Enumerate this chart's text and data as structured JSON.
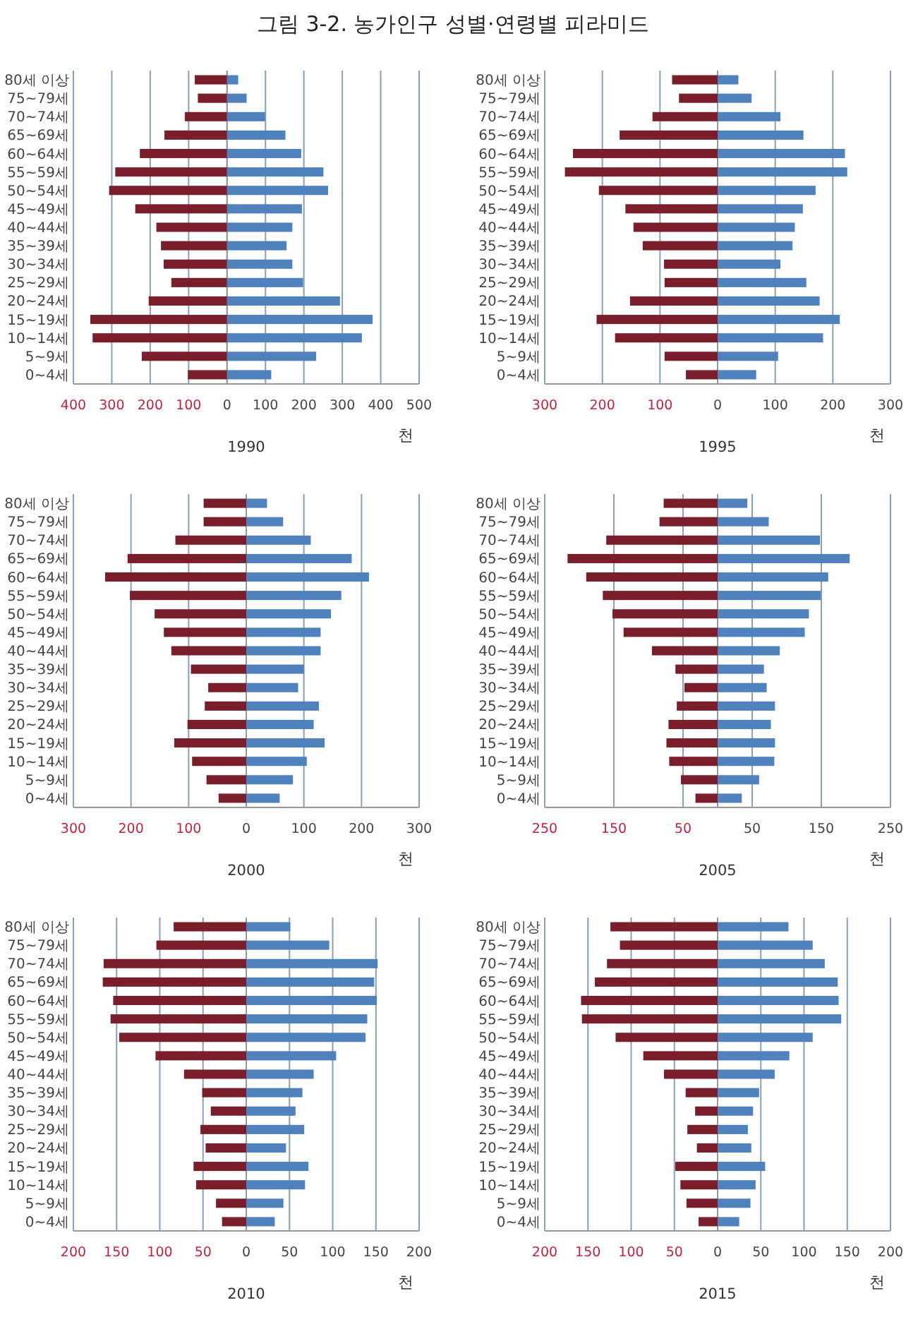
{
  "chart_data": [
    {
      "type": "bar",
      "orientation": "horizontal",
      "stacked": true,
      "title": "그림 3-2.  농가인구 성별·연령별 피라미드",
      "xlabel": "1990",
      "annotations": [
        "천"
      ],
      "grid": "x",
      "categories": [
        "80세 이상",
        "75~79세",
        "70~74세",
        "65~69세",
        "60~64세",
        "55~59세",
        "50~54세",
        "45~49세",
        "40~44세",
        "35~39세",
        "30~34세",
        "25~29세",
        "20~24세",
        "15~19세",
        "10~14세",
        "5~9세",
        "0~4세"
      ],
      "xlim": [
        -400,
        500
      ],
      "xticks": [
        {
          "value": -400,
          "label": "400"
        },
        {
          "value": -300,
          "label": "300"
        },
        {
          "value": -200,
          "label": "200"
        },
        {
          "value": -100,
          "label": "100"
        },
        0,
        100,
        200,
        300,
        400,
        500
      ],
      "series": [
        {
          "color": "#7b1e2b",
          "values": [
            -84,
            -76,
            -110,
            -163,
            -227,
            -291,
            -307,
            -239,
            -184,
            -172,
            -165,
            -145,
            -204,
            -356,
            -350,
            -222,
            -102
          ]
        },
        {
          "color": "#4f81bd",
          "values": [
            29,
            51,
            99,
            152,
            193,
            251,
            263,
            195,
            170,
            155,
            170,
            198,
            294,
            379,
            351,
            232,
            115
          ]
        }
      ]
    },
    {
      "type": "bar",
      "orientation": "horizontal",
      "stacked": true,
      "xlabel": "1995",
      "annotations": [
        "천"
      ],
      "grid": "x",
      "categories": [
        "80세 이상",
        "75~79세",
        "70~74세",
        "65~69세",
        "60~64세",
        "55~59세",
        "50~54세",
        "45~49세",
        "40~44세",
        "35~39세",
        "30~34세",
        "25~29세",
        "20~24세",
        "15~19세",
        "10~14세",
        "5~9세",
        "0~4세"
      ],
      "xlim": [
        -300,
        300
      ],
      "xticks": [
        {
          "value": -300,
          "label": "300"
        },
        {
          "value": -200,
          "label": "200"
        },
        {
          "value": -100,
          "label": "100"
        },
        0,
        100,
        200,
        300
      ],
      "series": [
        {
          "color": "#7b1e2b",
          "values": [
            -79,
            -67,
            -113,
            -170,
            -251,
            -265,
            -206,
            -160,
            -146,
            -130,
            -93,
            -92,
            -152,
            -210,
            -178,
            -92,
            -55
          ]
        },
        {
          "color": "#4f81bd",
          "values": [
            36,
            59,
            109,
            149,
            221,
            225,
            170,
            148,
            134,
            130,
            109,
            154,
            177,
            212,
            183,
            105,
            67
          ]
        }
      ]
    },
    {
      "type": "bar",
      "orientation": "horizontal",
      "stacked": true,
      "xlabel": "2000",
      "annotations": [
        "천"
      ],
      "grid": "x",
      "categories": [
        "80세 이상",
        "75~79세",
        "70~74세",
        "65~69세",
        "60~64세",
        "55~59세",
        "50~54세",
        "45~49세",
        "40~44세",
        "35~39세",
        "30~34세",
        "25~29세",
        "20~24세",
        "15~19세",
        "10~14세",
        "5~9세",
        "0~4세"
      ],
      "xlim": [
        -300,
        300
      ],
      "xticks": [
        {
          "value": -300,
          "label": "300"
        },
        {
          "value": -200,
          "label": "200"
        },
        {
          "value": -100,
          "label": "100"
        },
        0,
        100,
        200,
        300
      ],
      "series": [
        {
          "color": "#7b1e2b",
          "values": [
            -74,
            -74,
            -123,
            -206,
            -245,
            -202,
            -159,
            -143,
            -130,
            -96,
            -66,
            -72,
            -102,
            -125,
            -94,
            -69,
            -48
          ]
        },
        {
          "color": "#4f81bd",
          "values": [
            36,
            64,
            112,
            183,
            213,
            165,
            147,
            129,
            129,
            100,
            90,
            126,
            117,
            136,
            105,
            81,
            58
          ]
        }
      ]
    },
    {
      "type": "bar",
      "orientation": "horizontal",
      "stacked": true,
      "xlabel": "2005",
      "annotations": [
        "천"
      ],
      "grid": "x",
      "categories": [
        "80세 이상",
        "75~79세",
        "70~74세",
        "65~69세",
        "60~64세",
        "55~59세",
        "50~54세",
        "45~49세",
        "40~44세",
        "35~39세",
        "30~34세",
        "25~29세",
        "20~24세",
        "15~19세",
        "10~14세",
        "5~9세",
        "0~4세"
      ],
      "xlim": [
        -250,
        250
      ],
      "xticks": [
        {
          "value": -250,
          "label": "250"
        },
        {
          "value": -150,
          "label": "150"
        },
        {
          "value": -50,
          "label": "50"
        },
        {
          "value": 0,
          "label": null
        },
        50,
        150,
        250
      ],
      "series": [
        {
          "color": "#7b1e2b",
          "values": [
            -78,
            -84,
            -161,
            -217,
            -190,
            -166,
            -152,
            -136,
            -95,
            -61,
            -48,
            -59,
            -71,
            -74,
            -70,
            -53,
            -32
          ]
        },
        {
          "color": "#4f81bd",
          "values": [
            43,
            74,
            148,
            191,
            160,
            149,
            132,
            126,
            90,
            67,
            71,
            83,
            77,
            83,
            82,
            60,
            35
          ]
        }
      ]
    },
    {
      "type": "bar",
      "orientation": "horizontal",
      "stacked": true,
      "xlabel": "2010",
      "annotations": [
        "천"
      ],
      "grid": "x",
      "categories": [
        "80세 이상",
        "75~79세",
        "70~74세",
        "65~69세",
        "60~64세",
        "55~59세",
        "50~54세",
        "45~49세",
        "40~44세",
        "35~39세",
        "30~34세",
        "25~29세",
        "20~24세",
        "15~19세",
        "10~14세",
        "5~9세",
        "0~4세"
      ],
      "xlim": [
        -200,
        200
      ],
      "xticks": [
        {
          "value": -200,
          "label": "200"
        },
        {
          "value": -150,
          "label": "150"
        },
        {
          "value": -100,
          "label": "100"
        },
        {
          "value": -50,
          "label": "50"
        },
        0,
        50,
        100,
        150,
        200
      ],
      "series": [
        {
          "color": "#7b1e2b",
          "values": [
            -84,
            -104,
            -165,
            -166,
            -154,
            -157,
            -147,
            -105,
            -72,
            -51,
            -41,
            -53,
            -47,
            -61,
            -58,
            -35,
            -28
          ]
        },
        {
          "color": "#4f81bd",
          "values": [
            51,
            96,
            152,
            148,
            151,
            140,
            138,
            104,
            78,
            65,
            57,
            67,
            46,
            72,
            68,
            43,
            33
          ]
        }
      ]
    },
    {
      "type": "bar",
      "orientation": "horizontal",
      "stacked": true,
      "xlabel": "2015",
      "annotations": [
        "천"
      ],
      "grid": "x",
      "categories": [
        "80세 이상",
        "75~79세",
        "70~74세",
        "65~69세",
        "60~64세",
        "55~59세",
        "50~54세",
        "45~49세",
        "40~44세",
        "35~39세",
        "30~34세",
        "25~29세",
        "20~24세",
        "15~19세",
        "10~14세",
        "5~9세",
        "0~4세"
      ],
      "xlim": [
        -200,
        200
      ],
      "xticks": [
        {
          "value": -200,
          "label": "200"
        },
        {
          "value": -150,
          "label": "150"
        },
        {
          "value": -100,
          "label": "100"
        },
        {
          "value": -50,
          "label": "50"
        },
        0,
        50,
        100,
        150,
        200
      ],
      "series": [
        {
          "color": "#7b1e2b",
          "values": [
            -124,
            -113,
            -128,
            -142,
            -158,
            -157,
            -118,
            -86,
            -62,
            -37,
            -26,
            -35,
            -24,
            -49,
            -43,
            -36,
            -22
          ]
        },
        {
          "color": "#4f81bd",
          "values": [
            82,
            110,
            124,
            139,
            140,
            143,
            110,
            83,
            66,
            48,
            41,
            35,
            39,
            55,
            44,
            38,
            25
          ]
        }
      ]
    }
  ]
}
